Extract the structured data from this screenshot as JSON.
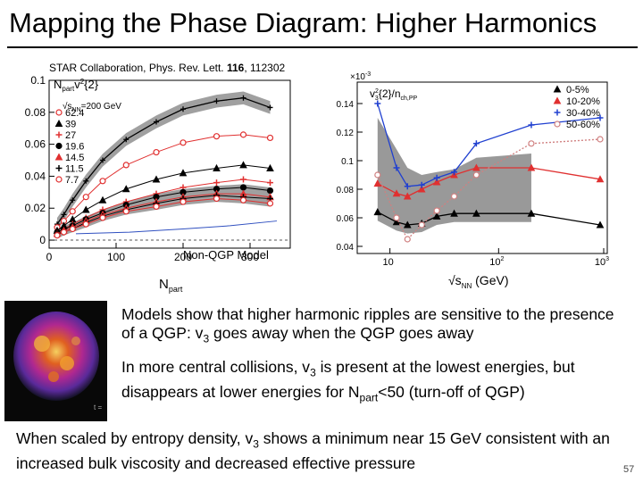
{
  "slide": {
    "title": "Mapping the Phase Diagram: Higher Harmonics",
    "citation_prefix": "STAR Collaboration, Phys. Rev. Lett. ",
    "citation_volume": "116",
    "citation_suffix": ", 112302",
    "sim_label": "t =",
    "text1": "Models show that higher harmonic ripples are sensitive to the presence of a QGP: v",
    "text1_sub": "3",
    "text1_end": " goes away when the QGP goes away",
    "text2_a": "In more central collisions, v",
    "text2_sub1": "3",
    "text2_b": " is present at the lowest energies, but disappears at lower energies for N",
    "text2_sub2": "part",
    "text2_c": "<50 (turn-off of QGP)",
    "text3_a": "When scaled by entropy density, v",
    "text3_sub": "3",
    "text3_b": " shows a minimum near 15 GeV consistent with an increased bulk viscosity and decreased effective pressure",
    "page_number": "57"
  },
  "chart_data": [
    {
      "type": "line",
      "ylabel": "N_part v_3^2{2}",
      "xlabel": "N_part",
      "xlim": [
        0,
        360
      ],
      "ylim": [
        -0.005,
        0.1
      ],
      "x_ticks": [
        "0",
        "100",
        "200",
        "300"
      ],
      "y_ticks": [
        "0",
        "0.02",
        "0.04",
        "0.06",
        "0.08",
        "0.1"
      ],
      "legend_energy_prefix": "√s",
      "legend_energy_sub": "NN",
      "legend_energy_suffix": "=200 GeV",
      "annotation": "Non-QGP Model",
      "x": [
        12,
        22,
        35,
        55,
        80,
        115,
        160,
        200,
        250,
        290,
        330
      ],
      "series": [
        {
          "name": "62.4",
          "color": "#e03030",
          "values": [
            0.008,
            0.012,
            0.018,
            0.027,
            0.037,
            0.047,
            0.055,
            0.061,
            0.065,
            0.066,
            0.064
          ]
        },
        {
          "name": "39",
          "color": "#000000",
          "values": [
            0.006,
            0.009,
            0.013,
            0.019,
            0.025,
            0.032,
            0.038,
            0.042,
            0.045,
            0.047,
            0.045
          ]
        },
        {
          "name": "27",
          "color": "#e03030",
          "values": [
            0.005,
            0.007,
            0.01,
            0.014,
            0.019,
            0.024,
            0.029,
            0.033,
            0.036,
            0.038,
            0.036
          ]
        },
        {
          "name": "19.6",
          "color": "#000000",
          "values": [
            0.005,
            0.007,
            0.009,
            0.013,
            0.017,
            0.022,
            0.027,
            0.03,
            0.032,
            0.033,
            0.031
          ]
        },
        {
          "name": "14.5",
          "color": "#e03030",
          "values": [
            0.004,
            0.006,
            0.008,
            0.012,
            0.016,
            0.02,
            0.024,
            0.027,
            0.029,
            0.029,
            0.027
          ]
        },
        {
          "name": "11.5",
          "color": "#000000",
          "values": [
            0.004,
            0.005,
            0.007,
            0.011,
            0.015,
            0.019,
            0.023,
            0.026,
            0.028,
            0.027,
            0.026
          ]
        },
        {
          "name": "7.7",
          "color": "#e03030",
          "values": [
            0.003,
            0.005,
            0.007,
            0.01,
            0.014,
            0.018,
            0.021,
            0.024,
            0.026,
            0.025,
            0.023
          ]
        }
      ],
      "top_series": {
        "color": "#000000",
        "values": [
          0.01,
          0.016,
          0.025,
          0.037,
          0.05,
          0.063,
          0.074,
          0.082,
          0.087,
          0.089,
          0.083
        ]
      },
      "model_series": {
        "color": "#3050c0",
        "x": [
          40,
          120,
          200,
          270,
          340
        ],
        "values": [
          0.004,
          0.005,
          0.007,
          0.009,
          0.012
        ]
      }
    },
    {
      "type": "line",
      "ylabel": "v_3^2{2}/n_ch,PP",
      "xlabel": "√s_NN (GeV)",
      "y_scale_label": "×10",
      "y_scale_exp": "-3",
      "x_scale": "log",
      "xlim": [
        5,
        1000
      ],
      "ylim": [
        0.035,
        0.155
      ],
      "x_ticks": [
        "10",
        "10",
        "10"
      ],
      "x_tick_exps": [
        "",
        "2",
        "3"
      ],
      "y_ticks": [
        "0.04",
        "0.06",
        "0.08",
        "0.1",
        "0.12",
        "0.14"
      ],
      "x": [
        7.7,
        11.5,
        14.5,
        19.6,
        27,
        39,
        62.4,
        200,
        2760
      ],
      "series": [
        {
          "name": "0-5%",
          "color": "#000000",
          "values": [
            0.064,
            0.057,
            0.055,
            0.056,
            0.061,
            0.063,
            0.063,
            0.063,
            0.055
          ]
        },
        {
          "name": "10-20%",
          "color": "#e03030",
          "values": [
            0.084,
            0.077,
            0.075,
            0.08,
            0.085,
            0.09,
            0.095,
            0.095,
            0.087
          ]
        },
        {
          "name": "30-40%",
          "color": "#2040d0",
          "values": [
            0.14,
            0.095,
            0.082,
            0.083,
            0.088,
            0.092,
            0.112,
            0.125,
            0.13
          ]
        },
        {
          "name": "50-60%",
          "color": "#d08080",
          "values": [
            0.09,
            0.06,
            0.045,
            0.055,
            0.065,
            0.075,
            0.09,
            0.112,
            0.115
          ]
        }
      ]
    }
  ]
}
